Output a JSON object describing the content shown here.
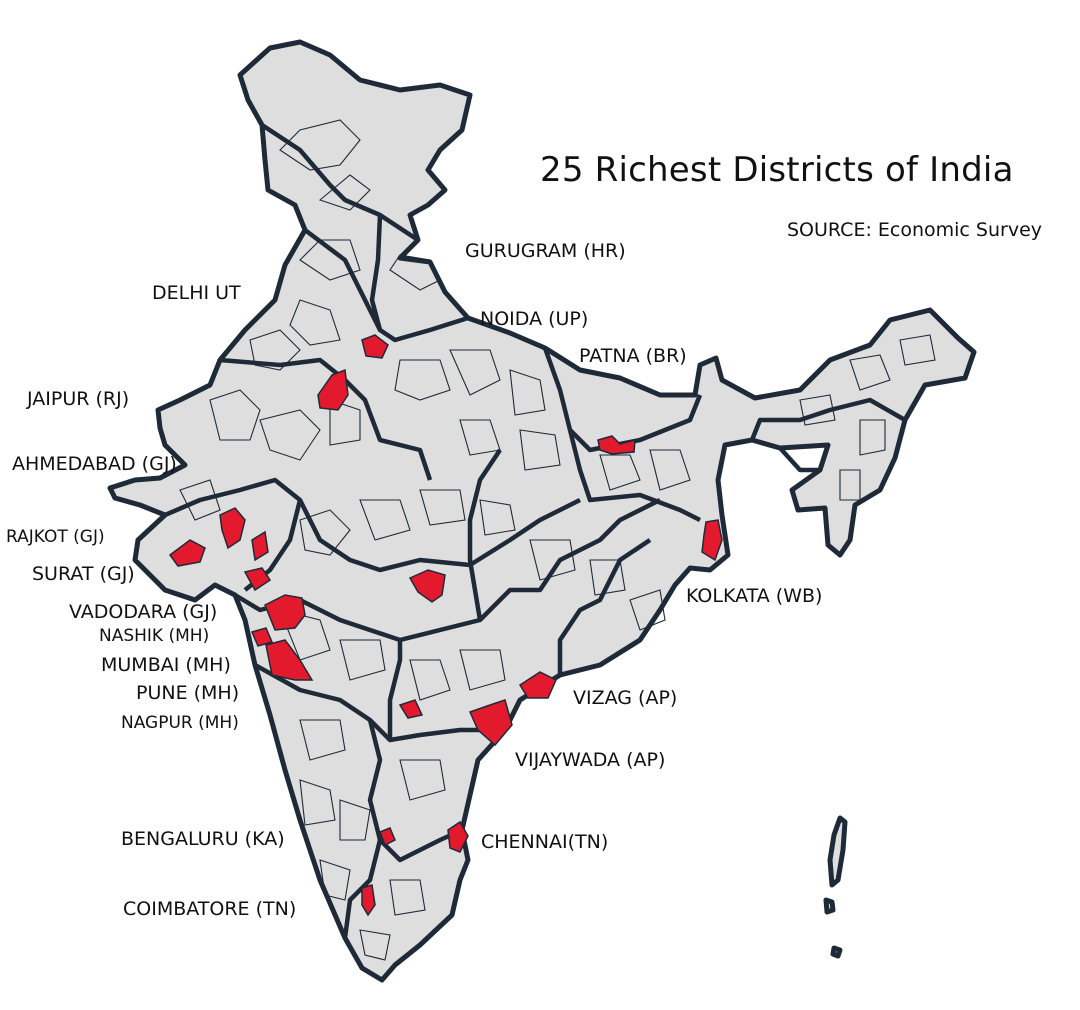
{
  "title": "25 Richest Districts of India",
  "source": "SOURCE: Economic Survey",
  "highlight_color": "#e3192d",
  "base_color": "#dedede",
  "border_color": "#1f2a38",
  "labels": {
    "gurugram": "GURUGRAM (HR)",
    "delhi": "DELHI UT",
    "noida": "NOIDA (UP)",
    "patna": "PATNA (BR)",
    "jaipur": "JAIPUR (RJ)",
    "ahmedabad": "AHMEDABAD (GJ)",
    "rajkot": "RAJKOT (GJ)",
    "surat": "SURAT (GJ)",
    "vadodara": "VADODARA (GJ)",
    "nashik": "NASHIK (MH)",
    "mumbai": "MUMBAI (MH)",
    "pune": "PUNE (MH)",
    "nagpur": "NAGPUR (MH)",
    "kolkata": "KOLKATA (WB)",
    "vizag": "VIZAG (AP)",
    "vijaywada": "VIJAYWADA (AP)",
    "bengaluru": "BENGALURU (KA)",
    "chennai": "CHENNAI(TN)",
    "coimbatore": "COIMBATORE (TN)"
  }
}
